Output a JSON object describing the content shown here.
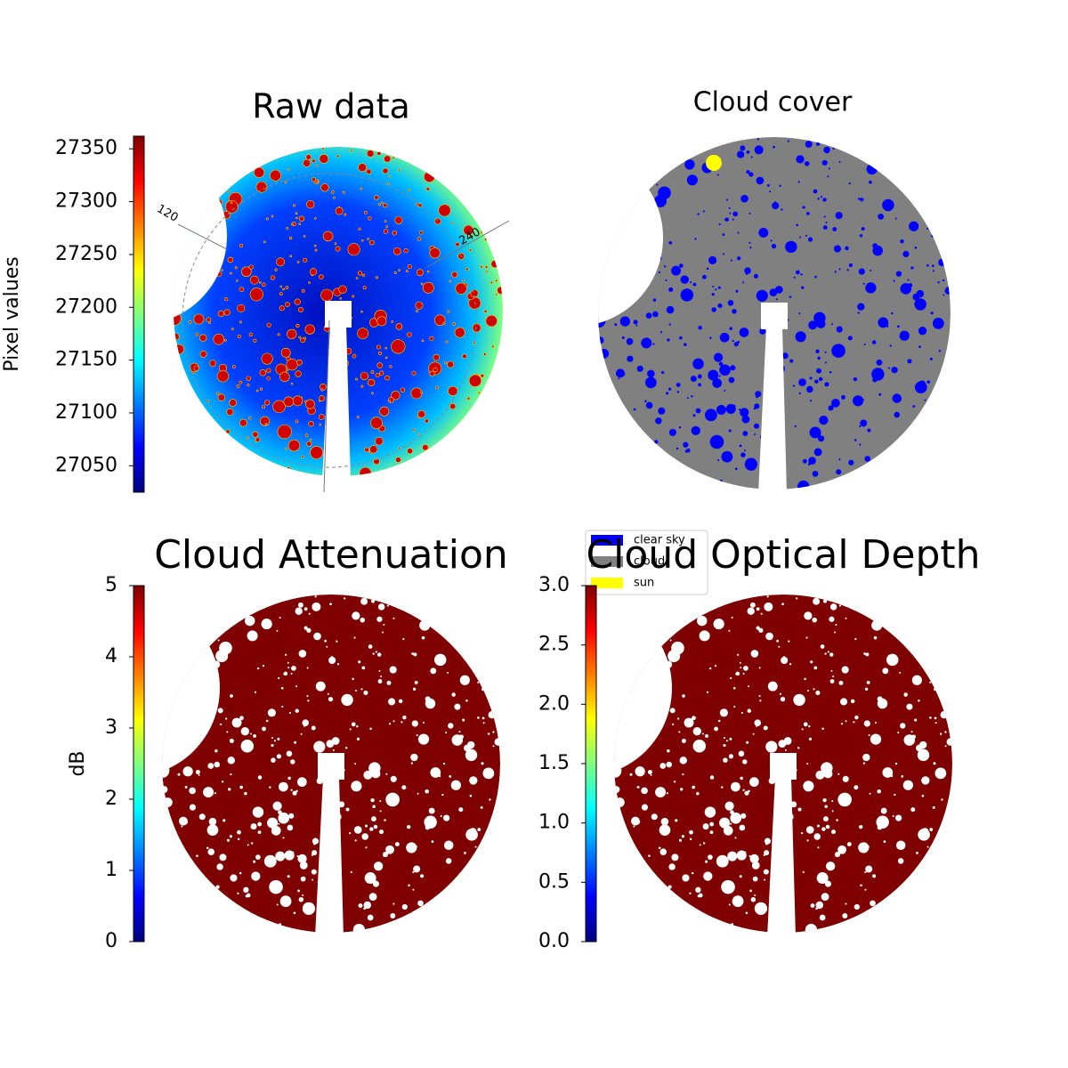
{
  "chart_data": [
    {
      "type": "image",
      "title": "Raw data",
      "colorbar_label": "Pixel values",
      "colormap": "jet",
      "ylim": [
        27025,
        27362
      ],
      "yticks": [
        27050,
        27100,
        27150,
        27200,
        27250,
        27300,
        27350
      ],
      "annotations": [
        "120",
        "240"
      ]
    },
    {
      "type": "image",
      "title": "Cloud cover",
      "legend": [
        {
          "label": "clear sky",
          "color": "#0000ff"
        },
        {
          "label": "cloud",
          "color": "#808080"
        },
        {
          "label": "sun",
          "color": "#ffff00"
        }
      ]
    },
    {
      "type": "image",
      "title": "Cloud Attenuation",
      "colorbar_label": "dB",
      "colormap": "jet",
      "ylim": [
        0,
        5
      ],
      "yticks": [
        0,
        1,
        2,
        3,
        4,
        5
      ]
    },
    {
      "type": "image",
      "title": "Cloud Optical Depth",
      "colormap": "jet",
      "ylim": [
        0,
        3
      ],
      "yticks": [
        {
          "value": 0,
          "label": "0.0"
        },
        0.5,
        {
          "value": 1,
          "label": "1.0"
        },
        1.5,
        {
          "value": 2,
          "label": "2.0"
        },
        2.5,
        {
          "value": 3,
          "label": "3.0"
        }
      ]
    }
  ]
}
